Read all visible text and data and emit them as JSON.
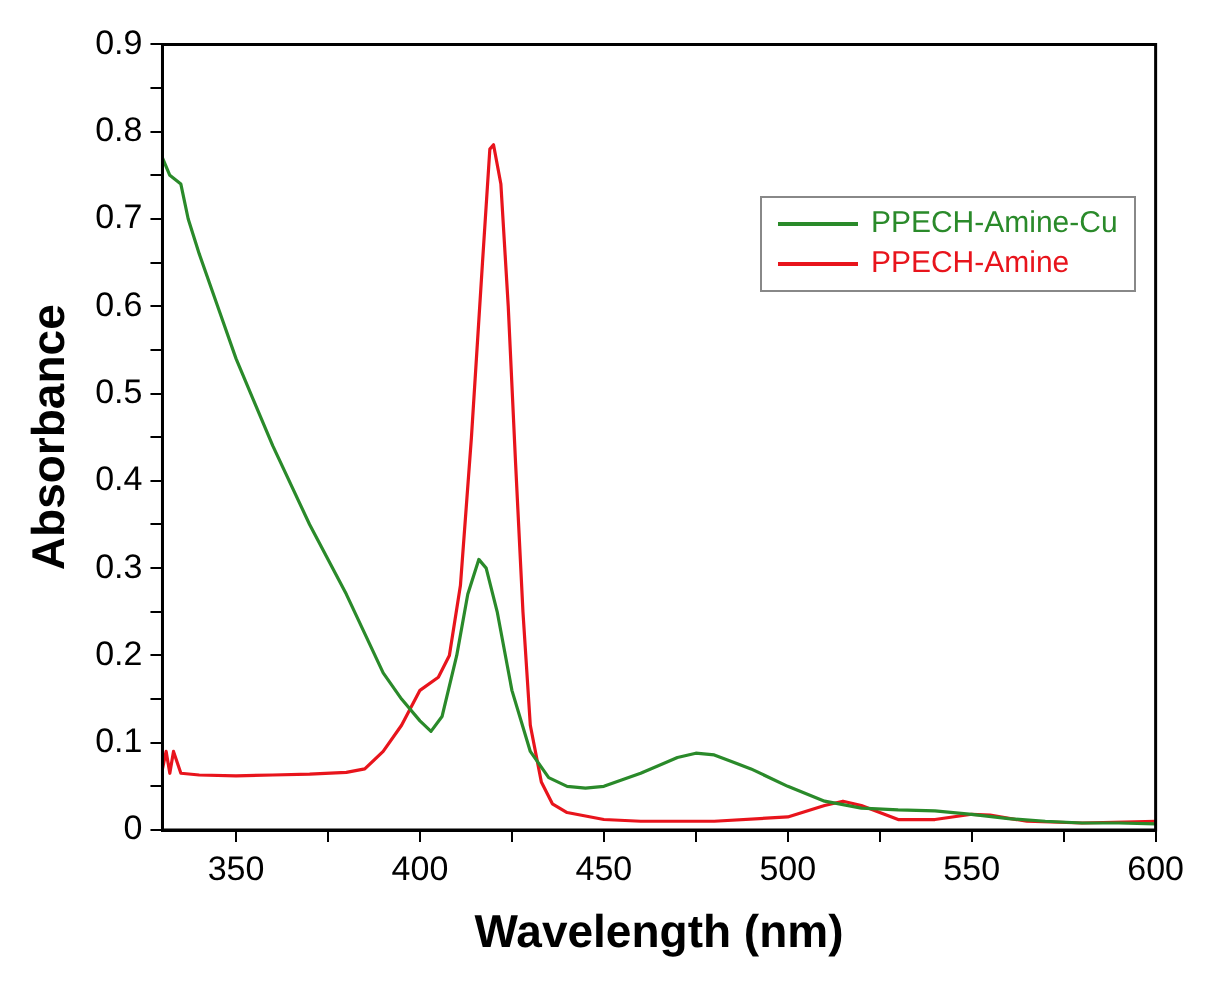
{
  "chart_data": {
    "type": "line",
    "xlabel": "Wavelength (nm)",
    "ylabel": "Absorbance",
    "xlim": [
      330,
      600
    ],
    "ylim": [
      0,
      0.9
    ],
    "xticks": [
      350,
      {
        "value": 375,
        "label": null
      },
      400,
      {
        "value": 425,
        "label": null
      },
      450,
      {
        "value": 475,
        "label": null
      },
      500,
      {
        "value": 525,
        "label": null
      },
      550,
      {
        "value": 575,
        "label": null
      },
      600
    ],
    "yticks": [
      0.0,
      {
        "value": 0.05,
        "label": null
      },
      0.1,
      {
        "value": 0.15,
        "label": null
      },
      0.2,
      {
        "value": 0.25,
        "label": null
      },
      0.3,
      {
        "value": 0.35,
        "label": null
      },
      0.4,
      {
        "value": 0.45,
        "label": null
      },
      0.5,
      {
        "value": 0.55,
        "label": null
      },
      0.6,
      {
        "value": 0.65,
        "label": null
      },
      0.7,
      {
        "value": 0.75,
        "label": null
      },
      0.8,
      {
        "value": 0.85,
        "label": null
      },
      0.9
    ],
    "grid": false,
    "legend": "top right",
    "marker": "none",
    "line_style": "solid",
    "series": [
      {
        "name": "PPECH-Amine-Cu",
        "color": "#2a8a2a",
        "x": [
          330,
          332,
          335,
          337,
          340,
          345,
          350,
          360,
          370,
          380,
          390,
          395,
          400,
          403,
          406,
          410,
          413,
          416,
          418,
          421,
          425,
          430,
          435,
          440,
          445,
          450,
          460,
          470,
          475,
          480,
          490,
          500,
          510,
          520,
          530,
          540,
          550,
          560,
          570,
          580,
          590,
          600
        ],
        "values": [
          0.77,
          0.75,
          0.74,
          0.7,
          0.66,
          0.6,
          0.54,
          0.44,
          0.35,
          0.27,
          0.18,
          0.15,
          0.125,
          0.113,
          0.13,
          0.2,
          0.27,
          0.31,
          0.3,
          0.25,
          0.16,
          0.09,
          0.06,
          0.05,
          0.048,
          0.05,
          0.065,
          0.083,
          0.088,
          0.086,
          0.07,
          0.05,
          0.033,
          0.025,
          0.023,
          0.022,
          0.018,
          0.013,
          0.01,
          0.008,
          0.008,
          0.007
        ]
      },
      {
        "name": "PPECH-Amine",
        "color": "#e8141c",
        "x": [
          330,
          331,
          332,
          333,
          335,
          340,
          350,
          360,
          370,
          380,
          385,
          390,
          395,
          400,
          405,
          408,
          411,
          414,
          417,
          419,
          420,
          422,
          424,
          426,
          428,
          430,
          433,
          436,
          440,
          450,
          460,
          480,
          500,
          510,
          515,
          520,
          530,
          540,
          550,
          555,
          565,
          580,
          600
        ],
        "values": [
          0.07,
          0.09,
          0.065,
          0.09,
          0.065,
          0.063,
          0.062,
          0.063,
          0.064,
          0.066,
          0.07,
          0.09,
          0.12,
          0.16,
          0.175,
          0.2,
          0.28,
          0.45,
          0.65,
          0.78,
          0.785,
          0.74,
          0.6,
          0.42,
          0.25,
          0.12,
          0.055,
          0.03,
          0.02,
          0.012,
          0.01,
          0.01,
          0.015,
          0.028,
          0.033,
          0.028,
          0.012,
          0.012,
          0.018,
          0.017,
          0.01,
          0.008,
          0.01
        ]
      }
    ]
  }
}
